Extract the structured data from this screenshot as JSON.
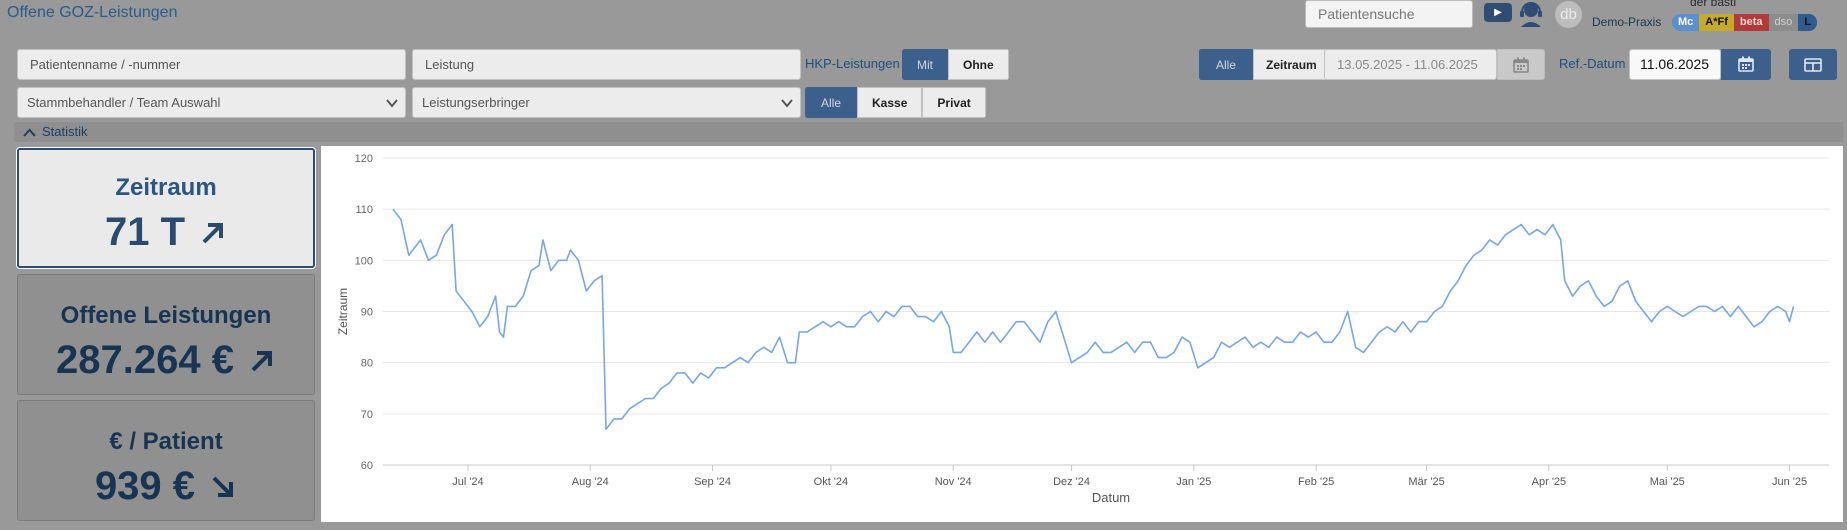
{
  "header": {
    "title": "Offene GOZ-Leistungen",
    "patient_search_placeholder": "Patientensuche",
    "youtube_label": "▶",
    "avatar_initials": "db",
    "user_name": "der basti",
    "practice_name": "Demo-Praxis",
    "badges": [
      "Mc",
      "A*Ff",
      "beta",
      "dso",
      "L"
    ]
  },
  "filters": {
    "patient_placeholder": "Patientenname / -nummer",
    "service_placeholder": "Leistung",
    "hkp_label": "HKP-Leistungen",
    "hkp_options": [
      "Mit",
      "Ohne"
    ],
    "hkp_selected": "Mit",
    "range_options": [
      "Alle",
      "Zeitraum"
    ],
    "range_selected": "Alle",
    "date_range": "13.05.2025 - 11.06.2025",
    "ref_label": "Ref.-Datum",
    "ref_date": "11.06.2025",
    "practitioner_select": "Stammbehandler / Team Auswahl",
    "provider_select": "Leistungserbringer",
    "insurance_options": [
      "Alle",
      "Kasse",
      "Privat"
    ],
    "insurance_selected": "Alle"
  },
  "stats": {
    "section_label": "Statistik",
    "cards": [
      {
        "title": "Zeitraum",
        "value": "71 T",
        "trend": "up"
      },
      {
        "title": "Offene Leistungen",
        "value": "287.264 €",
        "trend": "up"
      },
      {
        "title": "€ / Patient",
        "value": "939 €",
        "trend": "down"
      }
    ]
  },
  "chart_data": {
    "type": "line",
    "xlabel": "Datum",
    "ylabel": "Zeitraum",
    "ylim": [
      60,
      120
    ],
    "yticks": [
      60,
      70,
      80,
      90,
      100,
      110,
      120
    ],
    "x_start": "2024-06-12",
    "x_end": "2025-06-11",
    "xticks": [
      {
        "date": "2024-07-01",
        "label": "Jul '24"
      },
      {
        "date": "2024-08-01",
        "label": "Aug '24"
      },
      {
        "date": "2024-09-01",
        "label": "Sep '24"
      },
      {
        "date": "2024-10-01",
        "label": "Okt '24"
      },
      {
        "date": "2024-11-01",
        "label": "Nov '24"
      },
      {
        "date": "2024-12-01",
        "label": "Dez '24"
      },
      {
        "date": "2025-01-01",
        "label": "Jan '25"
      },
      {
        "date": "2025-02-01",
        "label": "Feb '25"
      },
      {
        "date": "2025-03-01",
        "label": "Mär '25"
      },
      {
        "date": "2025-04-01",
        "label": "Apr '25"
      },
      {
        "date": "2025-05-01",
        "label": "Mai '25"
      },
      {
        "date": "2025-06-01",
        "label": "Jun '25"
      }
    ],
    "series": [
      {
        "color": "#7aa6e0",
        "points": [
          [
            "2024-06-12",
            110
          ],
          [
            "2024-06-14",
            108
          ],
          [
            "2024-06-16",
            101
          ],
          [
            "2024-06-19",
            104
          ],
          [
            "2024-06-21",
            100
          ],
          [
            "2024-06-23",
            101
          ],
          [
            "2024-06-25",
            105
          ],
          [
            "2024-06-27",
            107
          ],
          [
            "2024-06-28",
            94
          ],
          [
            "2024-06-30",
            92
          ],
          [
            "2024-07-02",
            90
          ],
          [
            "2024-07-04",
            87
          ],
          [
            "2024-07-06",
            89
          ],
          [
            "2024-07-08",
            93
          ],
          [
            "2024-07-09",
            86
          ],
          [
            "2024-07-10",
            85
          ],
          [
            "2024-07-11",
            91
          ],
          [
            "2024-07-13",
            91
          ],
          [
            "2024-07-15",
            93
          ],
          [
            "2024-07-17",
            98
          ],
          [
            "2024-07-19",
            99
          ],
          [
            "2024-07-20",
            104
          ],
          [
            "2024-07-22",
            98
          ],
          [
            "2024-07-24",
            100
          ],
          [
            "2024-07-26",
            100
          ],
          [
            "2024-07-27",
            102
          ],
          [
            "2024-07-29",
            100
          ],
          [
            "2024-07-31",
            94
          ],
          [
            "2024-08-02",
            96
          ],
          [
            "2024-08-04",
            97
          ],
          [
            "2024-08-05",
            67
          ],
          [
            "2024-08-07",
            69
          ],
          [
            "2024-08-09",
            69
          ],
          [
            "2024-08-11",
            71
          ],
          [
            "2024-08-13",
            72
          ],
          [
            "2024-08-15",
            73
          ],
          [
            "2024-08-17",
            73
          ],
          [
            "2024-08-19",
            75
          ],
          [
            "2024-08-21",
            76
          ],
          [
            "2024-08-23",
            78
          ],
          [
            "2024-08-25",
            78
          ],
          [
            "2024-08-27",
            76
          ],
          [
            "2024-08-29",
            78
          ],
          [
            "2024-08-31",
            77
          ],
          [
            "2024-09-02",
            79
          ],
          [
            "2024-09-04",
            79
          ],
          [
            "2024-09-06",
            80
          ],
          [
            "2024-09-08",
            81
          ],
          [
            "2024-09-10",
            80
          ],
          [
            "2024-09-12",
            82
          ],
          [
            "2024-09-14",
            83
          ],
          [
            "2024-09-16",
            82
          ],
          [
            "2024-09-18",
            85
          ],
          [
            "2024-09-20",
            80
          ],
          [
            "2024-09-22",
            80
          ],
          [
            "2024-09-23",
            86
          ],
          [
            "2024-09-25",
            86
          ],
          [
            "2024-09-27",
            87
          ],
          [
            "2024-09-29",
            88
          ],
          [
            "2024-10-01",
            87
          ],
          [
            "2024-10-03",
            88
          ],
          [
            "2024-10-05",
            87
          ],
          [
            "2024-10-07",
            87
          ],
          [
            "2024-10-09",
            89
          ],
          [
            "2024-10-11",
            90
          ],
          [
            "2024-10-13",
            88
          ],
          [
            "2024-10-15",
            90
          ],
          [
            "2024-10-17",
            89
          ],
          [
            "2024-10-19",
            91
          ],
          [
            "2024-10-21",
            91
          ],
          [
            "2024-10-23",
            89
          ],
          [
            "2024-10-25",
            89
          ],
          [
            "2024-10-27",
            88
          ],
          [
            "2024-10-29",
            90
          ],
          [
            "2024-10-31",
            87
          ],
          [
            "2024-11-01",
            82
          ],
          [
            "2024-11-03",
            82
          ],
          [
            "2024-11-05",
            84
          ],
          [
            "2024-11-07",
            86
          ],
          [
            "2024-11-09",
            84
          ],
          [
            "2024-11-11",
            86
          ],
          [
            "2024-11-13",
            84
          ],
          [
            "2024-11-15",
            86
          ],
          [
            "2024-11-17",
            88
          ],
          [
            "2024-11-19",
            88
          ],
          [
            "2024-11-21",
            86
          ],
          [
            "2024-11-23",
            84
          ],
          [
            "2024-11-25",
            88
          ],
          [
            "2024-11-27",
            90
          ],
          [
            "2024-11-29",
            85
          ],
          [
            "2024-12-01",
            80
          ],
          [
            "2024-12-03",
            81
          ],
          [
            "2024-12-05",
            82
          ],
          [
            "2024-12-07",
            84
          ],
          [
            "2024-12-09",
            82
          ],
          [
            "2024-12-11",
            82
          ],
          [
            "2024-12-13",
            83
          ],
          [
            "2024-12-15",
            84
          ],
          [
            "2024-12-17",
            82
          ],
          [
            "2024-12-19",
            84
          ],
          [
            "2024-12-21",
            84
          ],
          [
            "2024-12-23",
            81
          ],
          [
            "2024-12-25",
            81
          ],
          [
            "2024-12-27",
            82
          ],
          [
            "2024-12-29",
            85
          ],
          [
            "2024-12-31",
            84
          ],
          [
            "2025-01-02",
            79
          ],
          [
            "2025-01-04",
            80
          ],
          [
            "2025-01-06",
            81
          ],
          [
            "2025-01-08",
            84
          ],
          [
            "2025-01-10",
            83
          ],
          [
            "2025-01-12",
            84
          ],
          [
            "2025-01-14",
            85
          ],
          [
            "2025-01-16",
            83
          ],
          [
            "2025-01-18",
            84
          ],
          [
            "2025-01-20",
            83
          ],
          [
            "2025-01-22",
            85
          ],
          [
            "2025-01-24",
            84
          ],
          [
            "2025-01-26",
            84
          ],
          [
            "2025-01-28",
            86
          ],
          [
            "2025-01-30",
            85
          ],
          [
            "2025-02-01",
            86
          ],
          [
            "2025-02-03",
            84
          ],
          [
            "2025-02-05",
            84
          ],
          [
            "2025-02-07",
            86
          ],
          [
            "2025-02-09",
            90
          ],
          [
            "2025-02-11",
            83
          ],
          [
            "2025-02-13",
            82
          ],
          [
            "2025-02-15",
            84
          ],
          [
            "2025-02-17",
            86
          ],
          [
            "2025-02-19",
            87
          ],
          [
            "2025-02-21",
            86
          ],
          [
            "2025-02-23",
            88
          ],
          [
            "2025-02-25",
            86
          ],
          [
            "2025-02-27",
            88
          ],
          [
            "2025-03-01",
            88
          ],
          [
            "2025-03-03",
            90
          ],
          [
            "2025-03-05",
            91
          ],
          [
            "2025-03-07",
            94
          ],
          [
            "2025-03-09",
            96
          ],
          [
            "2025-03-11",
            99
          ],
          [
            "2025-03-13",
            101
          ],
          [
            "2025-03-15",
            102
          ],
          [
            "2025-03-17",
            104
          ],
          [
            "2025-03-19",
            103
          ],
          [
            "2025-03-21",
            105
          ],
          [
            "2025-03-23",
            106
          ],
          [
            "2025-03-25",
            107
          ],
          [
            "2025-03-27",
            105
          ],
          [
            "2025-03-29",
            106
          ],
          [
            "2025-03-31",
            105
          ],
          [
            "2025-04-02",
            107
          ],
          [
            "2025-04-04",
            104
          ],
          [
            "2025-04-05",
            96
          ],
          [
            "2025-04-07",
            93
          ],
          [
            "2025-04-09",
            95
          ],
          [
            "2025-04-11",
            96
          ],
          [
            "2025-04-13",
            93
          ],
          [
            "2025-04-15",
            91
          ],
          [
            "2025-04-17",
            92
          ],
          [
            "2025-04-19",
            95
          ],
          [
            "2025-04-21",
            96
          ],
          [
            "2025-04-23",
            92
          ],
          [
            "2025-04-25",
            90
          ],
          [
            "2025-04-27",
            88
          ],
          [
            "2025-04-29",
            90
          ],
          [
            "2025-05-01",
            91
          ],
          [
            "2025-05-03",
            90
          ],
          [
            "2025-05-05",
            89
          ],
          [
            "2025-05-07",
            90
          ],
          [
            "2025-05-09",
            91
          ],
          [
            "2025-05-11",
            91
          ],
          [
            "2025-05-13",
            90
          ],
          [
            "2025-05-15",
            91
          ],
          [
            "2025-05-17",
            89
          ],
          [
            "2025-05-19",
            91
          ],
          [
            "2025-05-21",
            89
          ],
          [
            "2025-05-23",
            87
          ],
          [
            "2025-05-25",
            88
          ],
          [
            "2025-05-27",
            90
          ],
          [
            "2025-05-29",
            91
          ],
          [
            "2025-05-31",
            90
          ],
          [
            "2025-06-01",
            88
          ],
          [
            "2025-06-02",
            91
          ]
        ]
      }
    ]
  }
}
